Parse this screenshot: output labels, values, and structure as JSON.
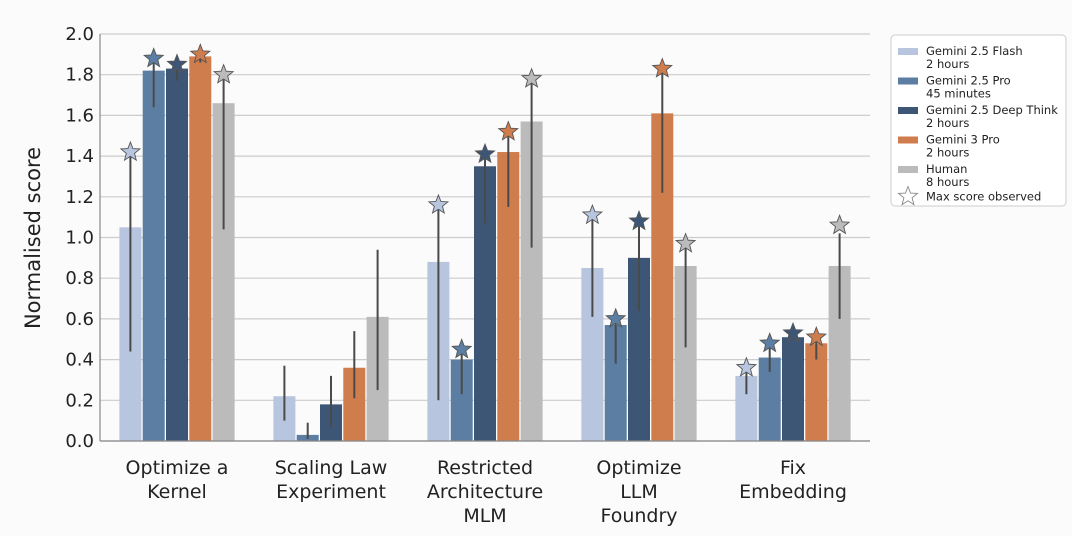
{
  "chart_data": {
    "type": "bar",
    "title": "",
    "xlabel": "",
    "ylabel": "Normalised score",
    "ylim": [
      0,
      2.0
    ],
    "yticks": [
      "0.0",
      "0.2",
      "0.4",
      "0.6",
      "0.8",
      "1.0",
      "1.2",
      "1.4",
      "1.6",
      "1.8",
      "2.0"
    ],
    "grid": "horizontal",
    "legend_position": "top-right-outside",
    "categories": [
      [
        "Optimize a",
        "Kernel"
      ],
      [
        "Scaling Law",
        "Experiment"
      ],
      [
        "Restricted",
        "Architecture",
        "MLM"
      ],
      [
        "Optimize",
        "LLM",
        "Foundry"
      ],
      [
        "Fix",
        "Embedding"
      ]
    ],
    "series": [
      {
        "name": "Gemini 2.5 Flash",
        "sub": "2 hours",
        "color": "#b8c5df",
        "values": [
          1.05,
          0.22,
          0.88,
          0.85,
          0.32
        ],
        "err_low": [
          0.44,
          0.1,
          0.2,
          0.61,
          0.23
        ],
        "err_high": [
          1.41,
          0.37,
          1.16,
          1.11,
          0.36
        ],
        "max": [
          1.42,
          0.0,
          1.16,
          1.11,
          0.36
        ]
      },
      {
        "name": "Gemini 2.5 Pro",
        "sub": "45 minutes",
        "color": "#5b7ea2",
        "values": [
          1.82,
          0.03,
          0.4,
          0.57,
          0.41
        ],
        "err_low": [
          1.64,
          0.01,
          0.23,
          0.38,
          0.34
        ],
        "err_high": [
          1.88,
          0.09,
          0.45,
          0.6,
          0.48
        ],
        "max": [
          1.88,
          0.0,
          0.45,
          0.6,
          0.48
        ]
      },
      {
        "name": "Gemini 2.5 Deep Think",
        "sub": "2 hours",
        "color": "#3e5676",
        "values": [
          1.83,
          0.18,
          1.35,
          0.9,
          0.51
        ],
        "err_low": [
          1.77,
          0.07,
          1.07,
          0.64,
          0.5
        ],
        "err_high": [
          1.86,
          0.32,
          1.41,
          1.07,
          0.53
        ],
        "max": [
          1.85,
          0.0,
          1.41,
          1.08,
          0.53
        ]
      },
      {
        "name": "Gemini 3 Pro",
        "sub": "2 hours",
        "color": "#d07d4e",
        "values": [
          1.89,
          0.36,
          1.42,
          1.61,
          0.48
        ],
        "err_low": [
          1.86,
          0.21,
          1.15,
          1.22,
          0.4
        ],
        "err_high": [
          1.9,
          0.54,
          1.52,
          1.83,
          0.51
        ],
        "max": [
          1.9,
          0.0,
          1.52,
          1.83,
          0.51
        ]
      },
      {
        "name": "Human",
        "sub": "8 hours",
        "color": "#bbbbbb",
        "values": [
          1.66,
          0.61,
          1.57,
          0.86,
          0.86
        ],
        "err_low": [
          1.04,
          0.25,
          0.95,
          0.46,
          0.6
        ],
        "err_high": [
          1.8,
          0.94,
          1.78,
          0.97,
          1.02
        ],
        "max": [
          1.8,
          0.0,
          1.78,
          0.97,
          1.06
        ]
      }
    ],
    "legend_star_label": "Max score observed"
  }
}
